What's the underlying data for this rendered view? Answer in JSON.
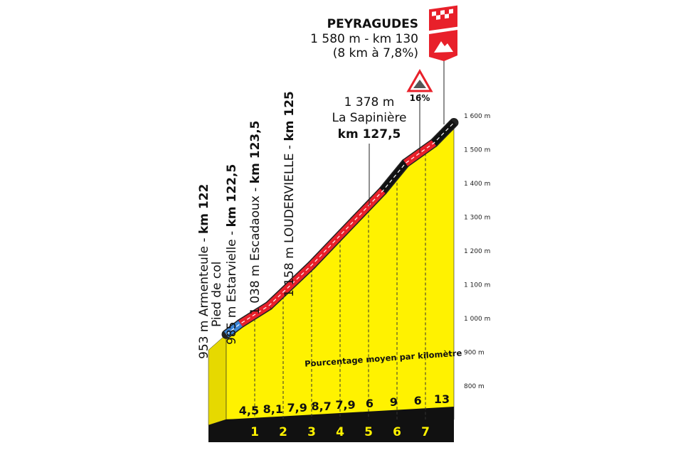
{
  "chart_data": {
    "type": "area",
    "x": [
      122,
      122.5,
      123.5,
      125,
      126.5,
      127.5,
      128.3,
      129.3,
      130
    ],
    "values": [
      953,
      985,
      1038,
      1158,
      1290,
      1378,
      1460,
      1520,
      1580
    ],
    "segment_colors": [
      "#3b84d6",
      "#e8202a",
      "#e8202a",
      "#e8202a",
      "#e8202a",
      "#111111",
      "#e8202a",
      "#111111"
    ],
    "fill_color": "#fff200",
    "xlim": [
      122,
      130
    ],
    "ylim": [
      800,
      1600
    ],
    "yticks": [
      {
        "value": 800,
        "label": "800 m"
      },
      {
        "value": 900,
        "label": "900 m"
      },
      {
        "value": 1000,
        "label": "1 000 m"
      },
      {
        "value": 1100,
        "label": "1 100 m"
      },
      {
        "value": 1200,
        "label": "1 200 m"
      },
      {
        "value": 1300,
        "label": "1 300 m"
      },
      {
        "value": 1400,
        "label": "1 400 m"
      },
      {
        "value": 1500,
        "label": "1 500 m"
      },
      {
        "value": 1600,
        "label": "1 600 m"
      }
    ],
    "km_marks": [
      1,
      2,
      3,
      4,
      5,
      6,
      7
    ],
    "gradients": [
      4.5,
      8.1,
      7.9,
      8.7,
      7.9,
      6,
      9,
      6,
      13
    ],
    "gradient_labels": [
      "4,5",
      "8,1",
      "7,9",
      "8,7",
      "7,9",
      "6",
      "9",
      "6",
      "13"
    ],
    "gradient_caption": "Pourcentage moyen par kilomètre",
    "summit": {
      "name": "PEYRAGUDES",
      "line1": "1 580 m - km 130",
      "line2": "(8 km à 7,8%)"
    },
    "warning": "16%",
    "waypoint": {
      "altitude": "1 378 m",
      "name": "La Sapinière",
      "km": "km 127,5"
    },
    "climb_points": [
      {
        "text": "953 m Armenteule - ",
        "km": "km 122",
        "note": "Pied de col"
      },
      {
        "text": "985 m Estarvielle - ",
        "km": "km 122,5"
      },
      {
        "text": "1 038 m Escadaoux - ",
        "km": "km 123,5"
      },
      {
        "text": "1 158 m LOUDERVIELLE - ",
        "km": "km 125"
      }
    ]
  }
}
